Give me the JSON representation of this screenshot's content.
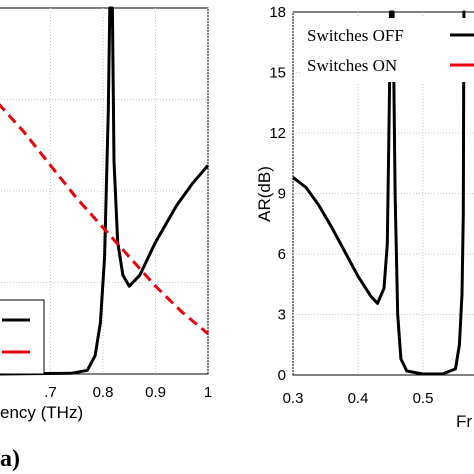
{
  "chart_data": [
    {
      "type": "line",
      "panel_label": "a)",
      "xlabel": "ency (THz)",
      "xlim": [
        0.6,
        1.0
      ],
      "ylim": [
        0,
        1
      ],
      "xticks": [
        0.7,
        0.8,
        0.9,
        1
      ],
      "xtick_labels": [
        ".7",
        "0.8",
        "0.9",
        "1"
      ],
      "grid": true,
      "legend_position": "bottom-left",
      "series": [
        {
          "color": "#000000",
          "dash": "solid",
          "points": [
            [
              0.6,
              0
            ],
            [
              0.74,
              0.002
            ],
            [
              0.77,
              0.01
            ],
            [
              0.785,
              0.05
            ],
            [
              0.795,
              0.14
            ],
            [
              0.803,
              0.32
            ],
            [
              0.81,
              0.72
            ],
            [
              0.813,
              1.0
            ],
            [
              0.818,
              1.0
            ],
            [
              0.821,
              0.58
            ],
            [
              0.828,
              0.36
            ],
            [
              0.838,
              0.27
            ],
            [
              0.85,
              0.24
            ],
            [
              0.87,
              0.27
            ],
            [
              0.9,
              0.36
            ],
            [
              0.94,
              0.46
            ],
            [
              0.97,
              0.52
            ],
            [
              1.0,
              0.57
            ]
          ]
        },
        {
          "color": "#e8000b",
          "dash": "dashed",
          "points": [
            [
              0.6,
              0.74
            ],
            [
              0.65,
              0.66
            ],
            [
              0.7,
              0.57
            ],
            [
              0.75,
              0.48
            ],
            [
              0.8,
              0.4
            ],
            [
              0.85,
              0.32
            ],
            [
              0.9,
              0.24
            ],
            [
              0.95,
              0.17
            ],
            [
              1.0,
              0.11
            ]
          ]
        }
      ]
    },
    {
      "type": "line",
      "ylabel": "AR(dB)",
      "xlabel": "Fr",
      "xlim": [
        0.3,
        0.6
      ],
      "ylim": [
        0,
        18
      ],
      "xticks": [
        0.3,
        0.4,
        0.5
      ],
      "xtick_labels": [
        "0.3",
        "0.4",
        "0.5"
      ],
      "yticks": [
        0,
        3,
        6,
        9,
        12,
        15,
        18
      ],
      "ytick_labels": [
        "0",
        "3",
        "6",
        "9",
        "12",
        "15",
        "18"
      ],
      "grid": true,
      "legend_position": "top-right",
      "series": [
        {
          "name": "Switches OFF",
          "color": "#000000",
          "dash": "solid",
          "points": [
            [
              0.3,
              9.8
            ],
            [
              0.32,
              9.3
            ],
            [
              0.34,
              8.4
            ],
            [
              0.36,
              7.3
            ],
            [
              0.38,
              6.1
            ],
            [
              0.4,
              4.9
            ],
            [
              0.42,
              3.9
            ],
            [
              0.43,
              3.55
            ],
            [
              0.44,
              4.3
            ],
            [
              0.445,
              6.5
            ],
            [
              0.448,
              13
            ],
            [
              0.45,
              18
            ],
            [
              0.454,
              18
            ],
            [
              0.457,
              9
            ],
            [
              0.461,
              3
            ],
            [
              0.466,
              0.8
            ],
            [
              0.475,
              0.2
            ],
            [
              0.5,
              0.05
            ],
            [
              0.53,
              0.05
            ],
            [
              0.55,
              0.3
            ],
            [
              0.556,
              1.5
            ],
            [
              0.56,
              4
            ],
            [
              0.562,
              8
            ],
            [
              0.563,
              18
            ],
            [
              0.565,
              18
            ]
          ]
        },
        {
          "name": "Switches ON",
          "color": "#e8000b",
          "dash": "dashed",
          "points": []
        }
      ]
    }
  ]
}
